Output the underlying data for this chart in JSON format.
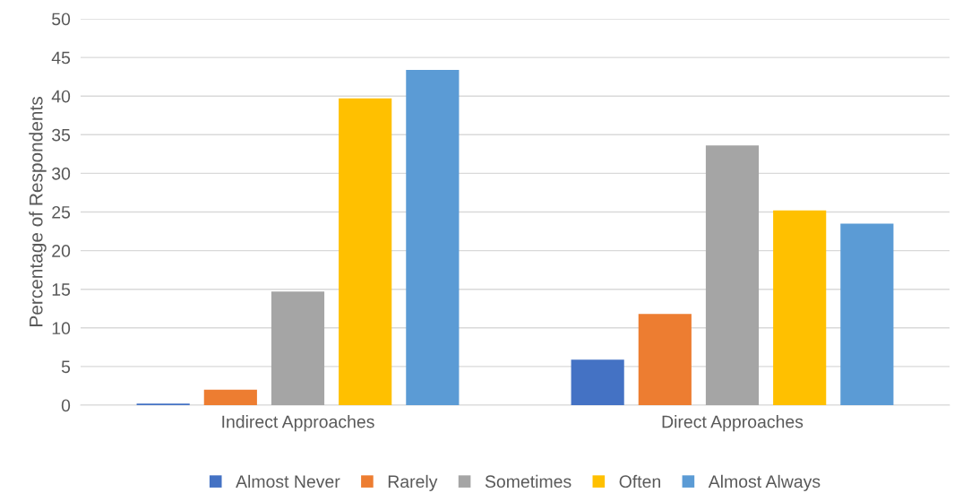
{
  "chart_data": {
    "type": "bar",
    "ylabel": "Percentage of Respondents",
    "categories": [
      "Indirect Approaches",
      "Direct Approaches"
    ],
    "series": [
      {
        "name": "Almost Never",
        "color": "#4472c4",
        "values": [
          0.2,
          5.9
        ]
      },
      {
        "name": "Rarely",
        "color": "#ed7d31",
        "values": [
          2.0,
          11.8
        ]
      },
      {
        "name": "Sometimes",
        "color": "#a5a5a5",
        "values": [
          14.7,
          33.6
        ]
      },
      {
        "name": "Often",
        "color": "#ffc000",
        "values": [
          39.7,
          25.2
        ]
      },
      {
        "name": "Almost Always",
        "color": "#5b9bd5",
        "values": [
          43.4,
          23.5
        ]
      }
    ],
    "ylim": [
      0,
      50
    ],
    "yticks": [
      0,
      5,
      10,
      15,
      20,
      25,
      30,
      35,
      40,
      45,
      50
    ],
    "grid": "y",
    "legend": "bottom"
  }
}
